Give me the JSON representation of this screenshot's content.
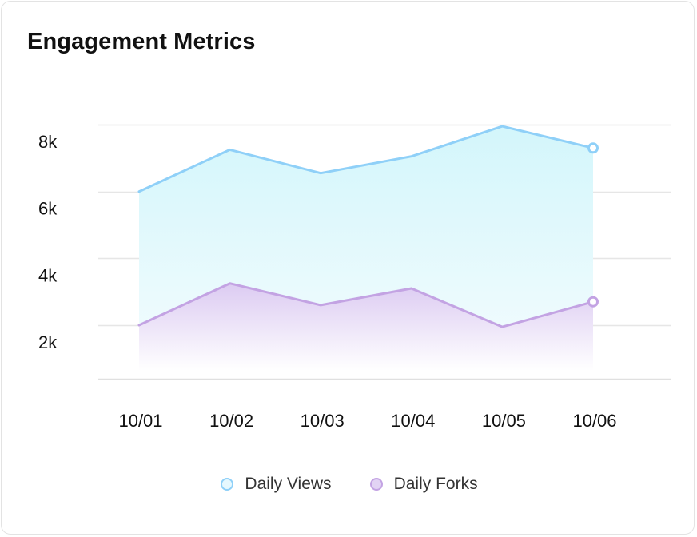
{
  "header": {
    "title": "Engagement Metrics"
  },
  "chart_data": {
    "type": "area",
    "title": "Engagement Metrics",
    "xlabel": "",
    "ylabel": "",
    "categories": [
      "10/01",
      "10/02",
      "10/03",
      "10/04",
      "10/05",
      "10/06"
    ],
    "y_ticks": [
      {
        "value": 2000,
        "label": "2k"
      },
      {
        "value": 4000,
        "label": "4k"
      },
      {
        "value": 6000,
        "label": "6k"
      },
      {
        "value": 8000,
        "label": "8k"
      }
    ],
    "ylim": [
      400,
      8000
    ],
    "grid": true,
    "legend_position": "bottom",
    "series": [
      {
        "name": "Daily Views",
        "values": [
          6000,
          7250,
          6550,
          7050,
          7950,
          7300
        ],
        "stroke": "#8fd0f8",
        "fill_top": "#d3f6fb",
        "fill_bottom": "#f4fcfe",
        "dot_fill": "#e6f8fe"
      },
      {
        "name": "Daily Forks",
        "values": [
          2000,
          3250,
          2600,
          3100,
          1950,
          2700
        ],
        "stroke": "#c3a3e3",
        "fill_top": "#dccbf2",
        "fill_bottom": "#ffffff",
        "dot_fill": "#e2d3f4"
      }
    ]
  }
}
